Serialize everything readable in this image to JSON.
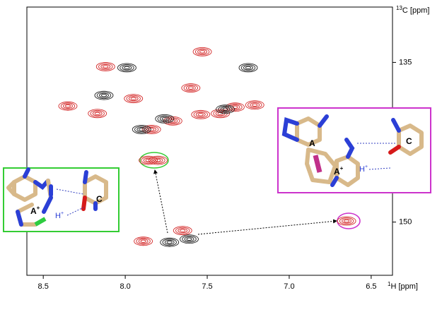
{
  "chart_data": {
    "type": "scatter",
    "x_label": {
      "superscript": "1",
      "text": "H [ppm]"
    },
    "y_label": {
      "superscript": "13",
      "text": "C [ppm]"
    },
    "xlim": [
      8.6,
      6.37
    ],
    "ylim": [
      129.8,
      155.0
    ],
    "xticks": [
      8.5,
      {
        "value": 8,
        "label": "8.0"
      },
      7.5,
      {
        "value": 7,
        "label": "7.0"
      },
      6.5
    ],
    "yticks": [
      135,
      150
    ],
    "series": [
      {
        "color": "#d42a2a",
        "x": [
          7.53,
          8.12,
          8.35,
          8.17,
          7.95,
          7.6,
          7.71,
          7.54,
          7.42,
          7.33,
          7.21,
          7.84,
          7.86,
          7.8,
          6.65,
          7.65,
          7.89
        ],
        "values": [
          134.0,
          135.4,
          139.1,
          139.8,
          138.4,
          137.4,
          140.5,
          139.9,
          139.8,
          139.2,
          139.0,
          141.3,
          144.2,
          144.2,
          149.9,
          150.8,
          151.8
        ]
      },
      {
        "color": "#222222",
        "x": [
          7.99,
          7.25,
          8.13,
          7.9,
          7.76,
          7.39,
          7.73,
          7.61
        ],
        "values": [
          135.5,
          135.5,
          138.1,
          141.3,
          140.3,
          139.4,
          151.9,
          151.6
        ]
      }
    ]
  },
  "insets": {
    "green": {
      "base_a": {
        "text": "A",
        "superscript": "+"
      },
      "proton": {
        "text": "H",
        "superscript": "+"
      },
      "base_c": "C"
    },
    "magenta": {
      "base_a": "A",
      "base_a_plus": {
        "text": "A",
        "superscript": "+"
      },
      "proton": {
        "text": "H",
        "superscript": "+"
      },
      "base_c": "C"
    }
  }
}
